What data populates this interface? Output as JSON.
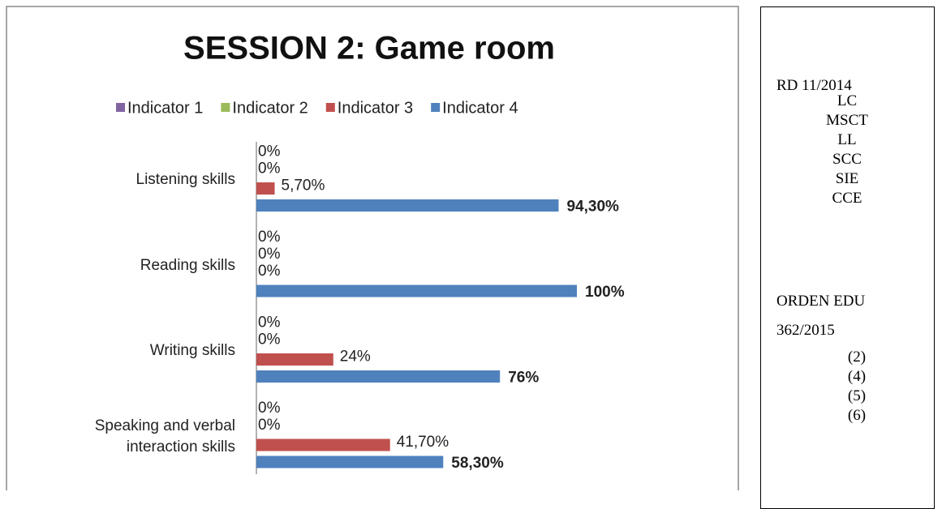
{
  "chart_data": {
    "type": "hbar",
    "title": "SESSION 2: Game room",
    "categories": [
      "Listening skills",
      "Reading skills",
      "Writing skills",
      "Speaking and verbal interaction skills"
    ],
    "series": [
      {
        "name": "Indicator 1",
        "color": "#8064a2",
        "values": [
          0,
          0,
          0,
          0
        ],
        "value_labels": [
          "0%",
          "0%",
          "0%",
          "0%"
        ]
      },
      {
        "name": "Indicator 2",
        "color": "#9bbb59",
        "values": [
          0,
          0,
          0,
          0
        ],
        "value_labels": [
          "0%",
          "0%",
          "0%",
          "0%"
        ]
      },
      {
        "name": "Indicator 3",
        "color": "#c0504d",
        "values": [
          5.7,
          0,
          24,
          41.7
        ],
        "value_labels": [
          "5,70%",
          "0%",
          "24%",
          "41,70%"
        ]
      },
      {
        "name": "Indicator 4",
        "color": "#4f81bd",
        "values": [
          94.3,
          100,
          76,
          58.3
        ],
        "value_labels": [
          "94,30%",
          "100%",
          "76%",
          "58,30%"
        ]
      }
    ],
    "xlim": [
      0,
      100
    ],
    "legend": "top"
  },
  "side_panel": {
    "first_heading": "RD 11/2014",
    "first_items": [
      "LC",
      "MSCT",
      "LL",
      "SCC",
      "SIE",
      "CCE"
    ],
    "second_heading": [
      "ORDEN EDU",
      "362/2015"
    ],
    "second_items": [
      "(2)",
      "(4)",
      "(5)",
      "(6)"
    ]
  }
}
